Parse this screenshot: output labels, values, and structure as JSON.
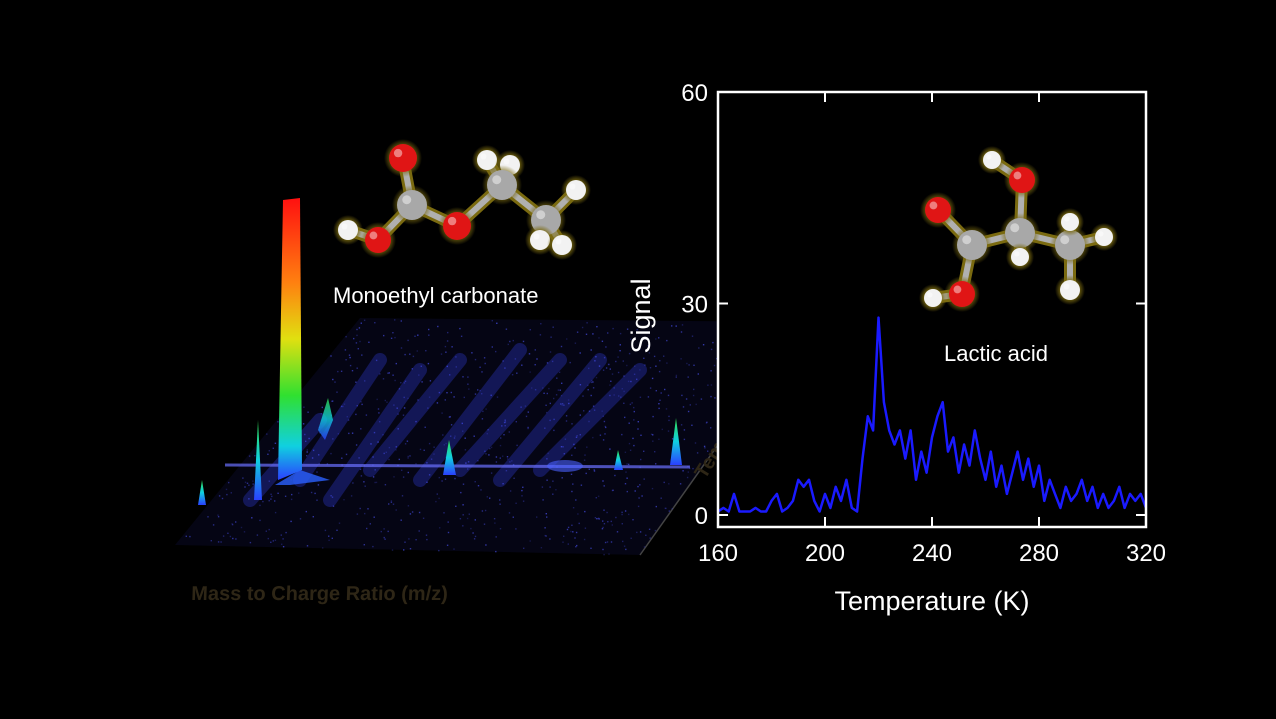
{
  "labels": {
    "molecule_left": "Monoethyl carbonate",
    "molecule_right": "Lactic acid",
    "spectrum_x_axis": "Mass to Charge Ratio (m/z)",
    "spectrum_depth_axis": "Temperature (K)"
  },
  "colors": {
    "background": "#000000",
    "line": "#1a1aff",
    "frame": "#ffffff",
    "oxygen_atom": "#e01515",
    "carbon_atom": "#a8a8a8",
    "hydrogen_atom": "#f2f2f2",
    "atom_glow": "#7a6a10"
  },
  "chart_data": [
    {
      "type": "line",
      "title": "",
      "xlabel": "Temperature (K)",
      "ylabel": "Signal",
      "xlim": [
        160,
        320
      ],
      "ylim": [
        0,
        60
      ],
      "xticks": [
        160,
        200,
        240,
        280,
        320
      ],
      "yticks": [
        0,
        30,
        60
      ],
      "grid": false,
      "series": [
        {
          "x": [
            160,
            162,
            164,
            166,
            168,
            170,
            172,
            174,
            176,
            178,
            180,
            182,
            184,
            186,
            188,
            190,
            192,
            194,
            196,
            198,
            200,
            202,
            204,
            206,
            208,
            210,
            212,
            214,
            216,
            218,
            220,
            222,
            224,
            226,
            228,
            230,
            232,
            234,
            236,
            238,
            240,
            242,
            244,
            246,
            248,
            250,
            252,
            254,
            256,
            258,
            260,
            262,
            264,
            266,
            268,
            270,
            272,
            274,
            276,
            278,
            280,
            282,
            284,
            286,
            288,
            290,
            292,
            294,
            296,
            298,
            300,
            302,
            304,
            306,
            308,
            310,
            312,
            314,
            316,
            318,
            320
          ],
          "y": [
            0.5,
            1,
            0.5,
            3,
            0.5,
            0.5,
            0.5,
            1,
            0.5,
            0.5,
            2,
            3,
            0.5,
            1,
            2,
            5,
            4,
            5,
            2,
            0.5,
            3,
            1,
            4,
            2,
            5,
            1,
            0.5,
            8,
            14,
            12,
            28,
            16,
            12,
            10,
            12,
            8,
            12,
            5,
            9,
            6,
            11,
            14,
            16,
            9,
            11,
            6,
            10,
            7,
            12,
            8,
            5,
            9,
            4,
            7,
            3,
            6,
            9,
            5,
            8,
            4,
            7,
            2,
            5,
            3,
            1,
            4,
            2,
            3,
            5,
            2,
            4,
            1,
            3,
            1,
            2,
            4,
            1,
            3,
            2,
            3,
            1
          ]
        }
      ]
    },
    {
      "type": "heatmap",
      "title": "",
      "xlabel": "Mass to Charge Ratio (m/z)",
      "ylabel": "Temperature (K)",
      "note_peaks_relative": [
        {
          "x": 0.05,
          "height": 0.2
        },
        {
          "x": 0.13,
          "height": 0.35
        },
        {
          "x": 0.18,
          "height": 1.0
        },
        {
          "x": 0.42,
          "height": 0.25
        },
        {
          "x": 0.72,
          "height": 0.15
        },
        {
          "x": 0.82,
          "height": 0.3
        }
      ]
    }
  ]
}
